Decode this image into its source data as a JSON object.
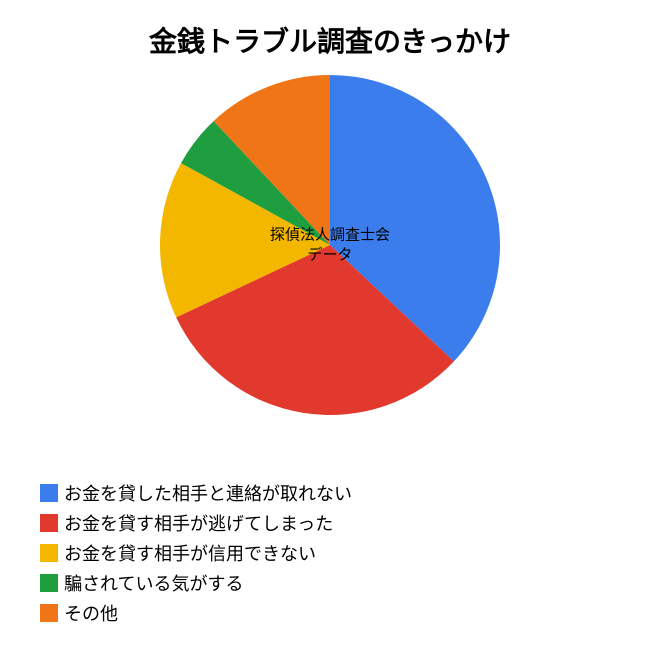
{
  "chart": {
    "type": "pie",
    "title": "金銭トラブル調査のきっかけ",
    "title_fontsize": 28,
    "center_label_line1": "探偵法人調査士会",
    "center_label_line2": "データ",
    "center_label_fontsize": 15,
    "background_color": "#ffffff",
    "pie_diameter": 340,
    "slices": [
      {
        "label": "お金を貸した相手と連絡が取れない",
        "value": 37,
        "color": "#3b7ded"
      },
      {
        "label": "お金を貸す相手が逃げてしまった",
        "value": 31,
        "color": "#e1392d"
      },
      {
        "label": "お金を貸す相手が信用できない",
        "value": 15,
        "color": "#f3b700"
      },
      {
        "label": "騙されている気がする",
        "value": 5,
        "color": "#1f9e3f"
      },
      {
        "label": "その他",
        "value": 12,
        "color": "#f07516"
      }
    ],
    "legend_fontsize": 18,
    "legend_swatch_size": 18
  }
}
